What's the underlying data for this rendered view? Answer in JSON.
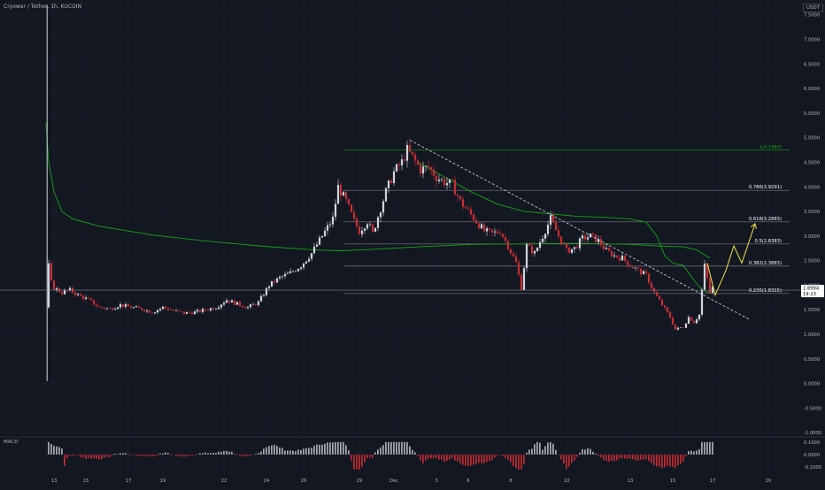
{
  "header": {
    "symbol_title": "Cryowar / Tether, 1h, KUCOIN",
    "currency": "USDT"
  },
  "macd_label": "MACD",
  "colors": {
    "background": "#131722",
    "grid": "#1e2230",
    "text": "#b2b5be",
    "candle_up": "#d1d4dc",
    "candle_down": "#c62f33",
    "green_line": "#16a516",
    "fib_line": "#787b86",
    "trendline": "#d1d4dc",
    "projection": "#f0e442",
    "price_label_bg": "#ffffff",
    "price_label_text": "#000000"
  },
  "chart_data": {
    "type": "candlestick",
    "x_ticks": [
      "13",
      "15",
      "17",
      "19",
      "22",
      "24",
      "26",
      "29",
      "Dec",
      "3",
      "6",
      "8",
      "10",
      "13",
      "15",
      "17",
      "20"
    ],
    "y_ticks": [
      "7.5000",
      "7.0000",
      "6.5000",
      "6.0000",
      "5.5000",
      "5.0000",
      "4.5000",
      "4.0000",
      "3.5000",
      "3.0000",
      "2.5000",
      "2.0000",
      "1.5000",
      "1.0000",
      "0.5000",
      "0.0000",
      "-0.5000",
      "-1.0000"
    ],
    "ylim": [
      -1.05,
      7.8
    ],
    "current_price": "1.8994",
    "countdown": "19:23",
    "fib_levels": [
      {
        "label": "1(4.7450)",
        "value": 4.745,
        "highlight": true
      },
      {
        "label": "0.786(3.9291)",
        "value": 3.9291
      },
      {
        "label": "0.618(3.2883)",
        "value": 3.2883
      },
      {
        "label": "0.5(2.8383)",
        "value": 2.8383
      },
      {
        "label": "0.382(2.3883)",
        "value": 2.3883
      },
      {
        "label": "0.236(1.8315)",
        "value": 1.8315
      }
    ],
    "price_path": [
      [
        0,
        1.55
      ],
      [
        0.3,
        7.7
      ],
      [
        0.6,
        1.3
      ],
      [
        1,
        2.4
      ],
      [
        2,
        2.05
      ],
      [
        3,
        1.95
      ],
      [
        6,
        1.85
      ],
      [
        9,
        1.9
      ],
      [
        12,
        1.8
      ],
      [
        16,
        1.7
      ],
      [
        20,
        1.55
      ],
      [
        24,
        1.52
      ],
      [
        28,
        1.6
      ],
      [
        32,
        1.55
      ],
      [
        36,
        1.52
      ],
      [
        40,
        1.45
      ],
      [
        44,
        1.55
      ],
      [
        48,
        1.48
      ],
      [
        52,
        1.43
      ],
      [
        56,
        1.45
      ],
      [
        60,
        1.5
      ],
      [
        64,
        1.55
      ],
      [
        68,
        1.7
      ],
      [
        72,
        1.62
      ],
      [
        76,
        1.55
      ],
      [
        80,
        1.65
      ],
      [
        84,
        2.0
      ],
      [
        88,
        2.15
      ],
      [
        92,
        2.25
      ],
      [
        96,
        2.4
      ],
      [
        100,
        2.65
      ],
      [
        104,
        3.0
      ],
      [
        108,
        3.35
      ],
      [
        110,
        4.0
      ],
      [
        113,
        3.7
      ],
      [
        116,
        3.3
      ],
      [
        118,
        3.1
      ],
      [
        121,
        3.3
      ],
      [
        123,
        3.05
      ],
      [
        125,
        3.4
      ],
      [
        128,
        3.9
      ],
      [
        131,
        4.3
      ],
      [
        134,
        4.5
      ],
      [
        136,
        4.75
      ],
      [
        138,
        4.6
      ],
      [
        141,
        4.35
      ],
      [
        144,
        4.4
      ],
      [
        147,
        4.2
      ],
      [
        150,
        4.1
      ],
      [
        153,
        4.05
      ],
      [
        156,
        3.7
      ],
      [
        159,
        3.5
      ],
      [
        162,
        3.3
      ],
      [
        165,
        3.1
      ],
      [
        168,
        3.05
      ],
      [
        171,
        3.1
      ],
      [
        174,
        2.8
      ],
      [
        177,
        2.45
      ],
      [
        179,
        1.95
      ],
      [
        181,
        2.8
      ],
      [
        184,
        2.65
      ],
      [
        187,
        3.0
      ],
      [
        190,
        3.35
      ],
      [
        193,
        3.0
      ],
      [
        196,
        2.7
      ],
      [
        199,
        2.75
      ],
      [
        202,
        2.95
      ],
      [
        205,
        3.0
      ],
      [
        208,
        2.9
      ],
      [
        211,
        2.7
      ],
      [
        214,
        2.6
      ],
      [
        217,
        2.55
      ],
      [
        220,
        2.4
      ],
      [
        223,
        2.3
      ],
      [
        226,
        2.2
      ],
      [
        229,
        1.85
      ],
      [
        232,
        1.6
      ],
      [
        235,
        1.35
      ],
      [
        237,
        1.1
      ],
      [
        240,
        1.15
      ],
      [
        242,
        1.35
      ],
      [
        244,
        1.25
      ],
      [
        246,
        1.4
      ],
      [
        248,
        2.4
      ],
      [
        250,
        1.85
      ],
      [
        251,
        1.95
      ]
    ],
    "green_line_1": [
      [
        0,
        5.3
      ],
      [
        1,
        4.5
      ],
      [
        3,
        3.9
      ],
      [
        6,
        3.5
      ],
      [
        10,
        3.35
      ],
      [
        20,
        3.2
      ],
      [
        40,
        3.02
      ],
      [
        60,
        2.9
      ],
      [
        80,
        2.8
      ],
      [
        100,
        2.72
      ],
      [
        110,
        2.7
      ],
      [
        120,
        2.72
      ],
      [
        140,
        2.78
      ],
      [
        160,
        2.83
      ],
      [
        200,
        2.85
      ],
      [
        220,
        2.83
      ],
      [
        230,
        2.8
      ],
      [
        240,
        2.78
      ],
      [
        245,
        2.72
      ],
      [
        250,
        2.55
      ]
    ],
    "green_line_2": [
      [
        140,
        4.5
      ],
      [
        150,
        4.2
      ],
      [
        160,
        3.9
      ],
      [
        170,
        3.65
      ],
      [
        180,
        3.5
      ],
      [
        190,
        3.45
      ],
      [
        200,
        3.4
      ],
      [
        210,
        3.38
      ],
      [
        220,
        3.35
      ],
      [
        226,
        3.28
      ],
      [
        230,
        3.0
      ],
      [
        233,
        2.6
      ],
      [
        236,
        2.45
      ],
      [
        240,
        2.4
      ],
      [
        244,
        2.1
      ],
      [
        247,
        1.9
      ],
      [
        250,
        1.85
      ]
    ],
    "trendline": [
      [
        137,
        4.95
      ],
      [
        265,
        1.3
      ]
    ],
    "projection": [
      [
        249,
        2.45
      ],
      [
        252,
        1.8
      ],
      [
        256,
        2.3
      ],
      [
        259,
        2.8
      ],
      [
        262,
        2.45
      ],
      [
        267,
        3.25
      ]
    ],
    "macd_ticks": [
      "0.1000",
      "0.0000",
      "-0.1000"
    ],
    "macd_ylim": [
      -0.15,
      0.12
    ]
  }
}
